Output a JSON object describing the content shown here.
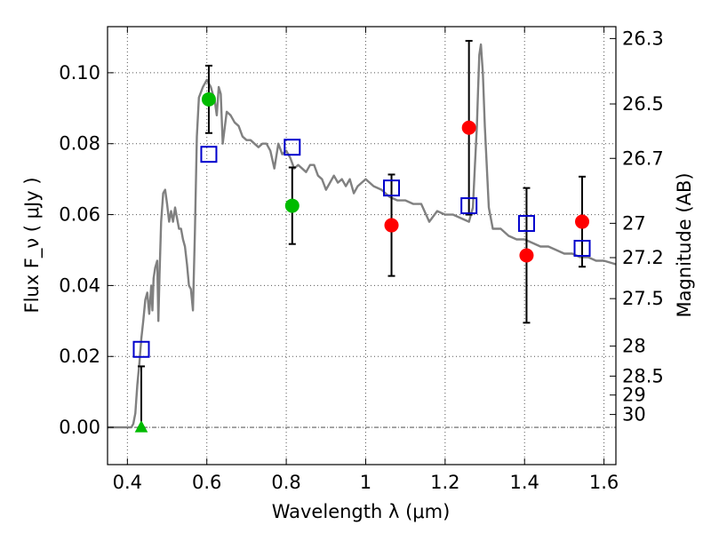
{
  "chart_data": {
    "type": "scatter",
    "xlabel": "Wavelength  λ (μm)",
    "ylabel": "Flux  F_ν  ( μJy )",
    "ylabel_right": "Magnitude (AB)",
    "xlim": [
      0.35,
      1.63
    ],
    "ylim": [
      -0.0105,
      0.113
    ],
    "grid": true,
    "x_ticks": [
      {
        "value": 0.4,
        "label": "0.4"
      },
      {
        "value": 0.6,
        "label": "0.6"
      },
      {
        "value": 0.8,
        "label": "0.8"
      },
      {
        "value": 1.0,
        "label": "1"
      },
      {
        "value": 1.2,
        "label": "1.2"
      },
      {
        "value": 1.4,
        "label": "1.4"
      },
      {
        "value": 1.6,
        "label": "1.6"
      }
    ],
    "y_ticks": [
      {
        "value": 0.0,
        "label": "0.00"
      },
      {
        "value": 0.02,
        "label": "0.02"
      },
      {
        "value": 0.04,
        "label": "0.04"
      },
      {
        "value": 0.06,
        "label": "0.06"
      },
      {
        "value": 0.08,
        "label": "0.08"
      },
      {
        "value": 0.1,
        "label": "0.10"
      }
    ],
    "mag_ticks": [
      {
        "mag": 26.3,
        "label": "26.3"
      },
      {
        "mag": 26.5,
        "label": "26.5"
      },
      {
        "mag": 26.7,
        "label": "26.7"
      },
      {
        "mag": 27.0,
        "label": "27"
      },
      {
        "mag": 27.2,
        "label": "27.2"
      },
      {
        "mag": 27.5,
        "label": "27.5"
      },
      {
        "mag": 28.0,
        "label": "28"
      },
      {
        "mag": 28.5,
        "label": "28.5"
      },
      {
        "mag": 29.0,
        "label": "29"
      },
      {
        "mag": 30.0,
        "label": "30"
      }
    ],
    "model_curve": {
      "color": "#808080",
      "x": [
        0.35,
        0.4,
        0.41,
        0.415,
        0.42,
        0.425,
        0.43,
        0.435,
        0.44,
        0.445,
        0.45,
        0.455,
        0.46,
        0.463,
        0.466,
        0.47,
        0.475,
        0.478,
        0.481,
        0.485,
        0.49,
        0.495,
        0.5,
        0.505,
        0.51,
        0.515,
        0.52,
        0.525,
        0.53,
        0.535,
        0.54,
        0.545,
        0.55,
        0.555,
        0.56,
        0.565,
        0.57,
        0.575,
        0.58,
        0.59,
        0.6,
        0.61,
        0.62,
        0.625,
        0.63,
        0.635,
        0.64,
        0.65,
        0.66,
        0.67,
        0.68,
        0.69,
        0.7,
        0.71,
        0.72,
        0.73,
        0.74,
        0.75,
        0.76,
        0.77,
        0.78,
        0.79,
        0.8,
        0.81,
        0.82,
        0.83,
        0.84,
        0.85,
        0.86,
        0.87,
        0.88,
        0.89,
        0.9,
        0.91,
        0.92,
        0.93,
        0.94,
        0.95,
        0.96,
        0.97,
        0.98,
        0.99,
        1.0,
        1.02,
        1.04,
        1.06,
        1.08,
        1.1,
        1.12,
        1.14,
        1.16,
        1.18,
        1.2,
        1.22,
        1.24,
        1.26,
        1.27,
        1.275,
        1.28,
        1.283,
        1.286,
        1.29,
        1.295,
        1.3,
        1.31,
        1.32,
        1.34,
        1.36,
        1.38,
        1.4,
        1.42,
        1.44,
        1.46,
        1.48,
        1.5,
        1.52,
        1.54,
        1.56,
        1.58,
        1.6,
        1.63
      ],
      "y": [
        0.0,
        0.0,
        0.0,
        0.001,
        0.004,
        0.012,
        0.018,
        0.025,
        0.03,
        0.036,
        0.038,
        0.032,
        0.04,
        0.033,
        0.042,
        0.045,
        0.047,
        0.03,
        0.043,
        0.058,
        0.066,
        0.067,
        0.063,
        0.058,
        0.061,
        0.058,
        0.062,
        0.059,
        0.056,
        0.056,
        0.053,
        0.051,
        0.046,
        0.04,
        0.039,
        0.033,
        0.055,
        0.082,
        0.093,
        0.096,
        0.098,
        0.096,
        0.092,
        0.088,
        0.096,
        0.094,
        0.08,
        0.089,
        0.088,
        0.086,
        0.085,
        0.082,
        0.081,
        0.081,
        0.08,
        0.079,
        0.08,
        0.08,
        0.078,
        0.073,
        0.08,
        0.077,
        0.078,
        0.076,
        0.073,
        0.074,
        0.073,
        0.072,
        0.074,
        0.074,
        0.071,
        0.07,
        0.067,
        0.069,
        0.071,
        0.069,
        0.07,
        0.068,
        0.07,
        0.066,
        0.068,
        0.069,
        0.07,
        0.068,
        0.067,
        0.065,
        0.064,
        0.064,
        0.063,
        0.063,
        0.058,
        0.061,
        0.06,
        0.06,
        0.059,
        0.058,
        0.062,
        0.074,
        0.085,
        0.095,
        0.105,
        0.108,
        0.1,
        0.085,
        0.062,
        0.056,
        0.056,
        0.054,
        0.053,
        0.053,
        0.052,
        0.051,
        0.051,
        0.05,
        0.049,
        0.049,
        0.048,
        0.048,
        0.047,
        0.047,
        0.046
      ]
    },
    "model_photometry": {
      "color": "#0000cc",
      "marker": "open-square",
      "x": [
        0.435,
        0.605,
        0.815,
        1.065,
        1.26,
        1.405,
        1.545
      ],
      "y": [
        0.022,
        0.077,
        0.079,
        0.0675,
        0.0625,
        0.0575,
        0.0505
      ]
    },
    "observed_green": {
      "color": "#00bb00",
      "marker": "filled-circle",
      "x": [
        0.605,
        0.815
      ],
      "y": [
        0.0925,
        0.0625
      ],
      "yerr": [
        0.0095,
        0.0108
      ]
    },
    "observed_red": {
      "color": "#ff0000",
      "marker": "filled-circle",
      "x": [
        1.065,
        1.26,
        1.405,
        1.545
      ],
      "y": [
        0.057,
        0.0845,
        0.0485,
        0.058
      ],
      "yerr": [
        0.0143,
        0.0245,
        0.019,
        0.0127
      ]
    },
    "upper_limit": {
      "color": "#00bb00",
      "marker": "triangle",
      "x": 0.435,
      "y": 0.0,
      "yerr_up": 0.0172
    }
  }
}
